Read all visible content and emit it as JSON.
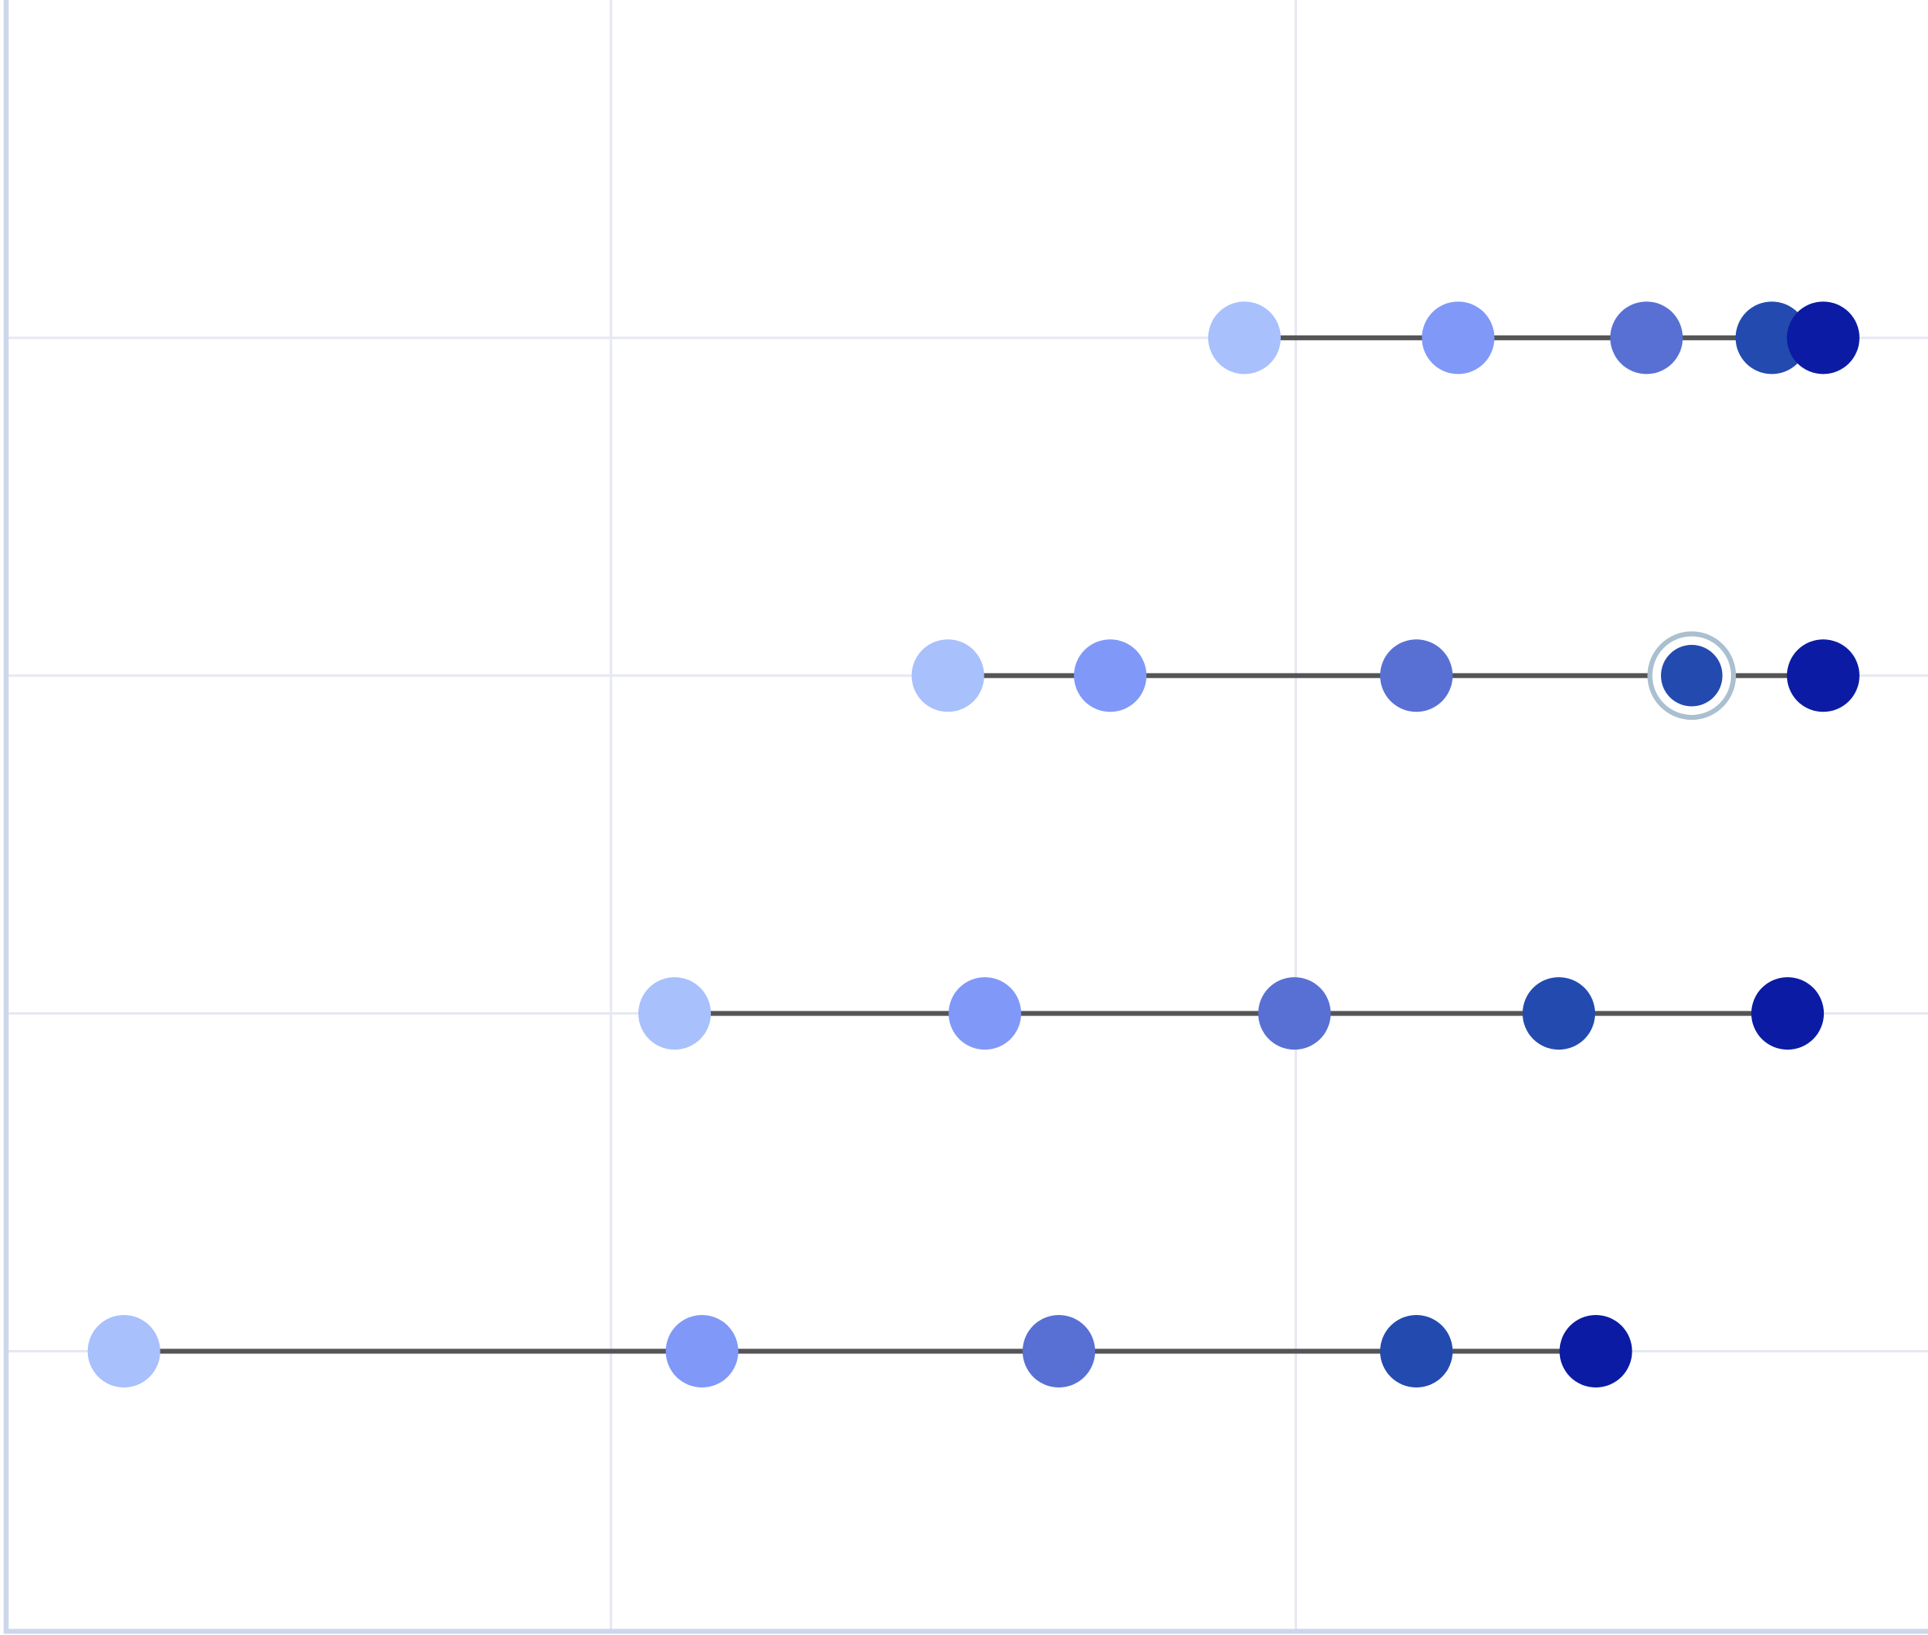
{
  "chart_data": {
    "type": "scatter",
    "subtype": "dot-plot",
    "title": "",
    "xlabel": "",
    "ylabel": "",
    "xlim": [
      0.117,
      2.923
    ],
    "ylim": [
      0,
      4.84
    ],
    "x_gridlines": [
      1,
      2
    ],
    "grid": true,
    "legend": "none",
    "rows": [
      {
        "y": 1,
        "x": [
          1.925,
          2.237,
          2.512,
          2.695,
          2.77
        ]
      },
      {
        "y": 2,
        "x": [
          1.492,
          1.729,
          2.176,
          2.578,
          2.77
        ],
        "highlighted_index": 3
      },
      {
        "y": 3,
        "x": [
          1.093,
          1.546,
          1.998,
          2.384,
          2.718
        ]
      },
      {
        "y": 4,
        "x": [
          0.289,
          1.133,
          1.654,
          2.176,
          2.438
        ]
      }
    ],
    "point_colors": [
      "#a8c0fc",
      "#8098f8",
      "#5870d4",
      "#234aae",
      "#0c1ba3"
    ],
    "line_color": "#555555",
    "highlight_ring_color": "#aabfcf",
    "grid_color": "#e6e8f2",
    "axis_color": "#cdd6ea"
  }
}
